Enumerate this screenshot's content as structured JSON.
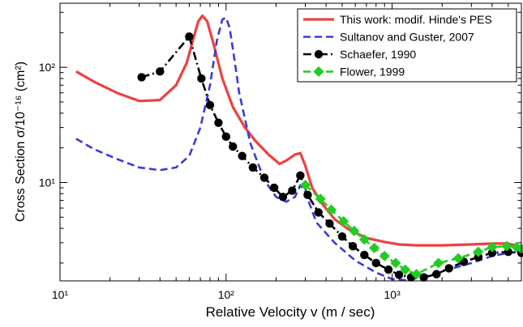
{
  "chart_data": {
    "type": "line",
    "title": "",
    "xlabel": "Relative Velocity  v (m / sec)",
    "ylabel": "Cross Section  σ/10⁻¹⁶ (cm²)",
    "x_scale": "log",
    "y_scale": "log",
    "xlim": [
      10,
      6000
    ],
    "ylim": [
      1.4,
      360
    ],
    "x_ticks": [
      {
        "value": 10,
        "label": "10¹"
      },
      {
        "value": 100,
        "label": "10²"
      },
      {
        "value": 1000,
        "label": "10³"
      }
    ],
    "y_ticks": [
      {
        "value": 10,
        "label": "10¹"
      },
      {
        "value": 100,
        "label": "10²"
      }
    ],
    "grid": false,
    "legend_position": "top-right",
    "series": [
      {
        "name": "This work: modif. Hinde's PES",
        "color": "#f04040",
        "style": "solid",
        "marker": "none",
        "x": [
          12.5,
          16,
          22,
          30,
          40,
          50,
          58,
          63,
          68,
          72,
          77,
          85,
          95,
          110,
          130,
          150,
          180,
          210,
          230,
          260,
          280,
          300,
          330,
          380,
          450,
          550,
          700,
          900,
          1100,
          1400,
          2000,
          3000,
          4000,
          5000,
          5500,
          6000
        ],
        "y": [
          92,
          75,
          60,
          51,
          52,
          70,
          110,
          170,
          250,
          280,
          250,
          150,
          80,
          45,
          30,
          23,
          17.5,
          14.5,
          15.5,
          17.5,
          18,
          14,
          9,
          6.5,
          4.8,
          3.9,
          3.3,
          3.05,
          2.9,
          2.85,
          2.85,
          2.9,
          2.95,
          2.95,
          2.85,
          2.65
        ]
      },
      {
        "name": "Sultanov and Guster, 2007",
        "color": "#3b3bdc",
        "style": "dashed",
        "marker": "none",
        "x": [
          12.5,
          16,
          22,
          30,
          40,
          50,
          60,
          70,
          80,
          88,
          95,
          100,
          105,
          112,
          120,
          140,
          170,
          200,
          230,
          260,
          280,
          300,
          350,
          450,
          600,
          800,
          1000,
          1200,
          1500,
          2000,
          3000,
          4000,
          5000,
          6000
        ],
        "y": [
          24,
          19.5,
          16,
          13.5,
          12.8,
          13.5,
          17,
          30,
          70,
          170,
          260,
          270,
          220,
          120,
          60,
          22,
          10.5,
          7.5,
          6.8,
          7.5,
          9.5,
          8.2,
          4.5,
          3.0,
          2.1,
          1.65,
          1.45,
          1.42,
          1.5,
          1.7,
          2.0,
          2.3,
          2.45,
          2.5
        ]
      },
      {
        "name": "Schaefer, 1990",
        "color": "#000000",
        "style": "dashdot",
        "marker": "circle",
        "x": [
          31,
          40,
          60,
          71,
          80,
          90,
          100,
          110,
          125,
          145,
          170,
          195,
          220,
          250,
          280,
          310,
          360,
          420,
          500,
          580,
          680,
          800,
          950,
          1100,
          1300,
          1550,
          1850,
          2200,
          2700,
          3300,
          4000,
          5000,
          6000
        ],
        "y": [
          82,
          92,
          185,
          80,
          47,
          33,
          25,
          20.5,
          17,
          13.5,
          11,
          9,
          7.5,
          8.5,
          11.5,
          7.8,
          5.5,
          4.4,
          3.4,
          2.8,
          2.35,
          2.0,
          1.75,
          1.58,
          1.5,
          1.5,
          1.6,
          1.8,
          2.05,
          2.25,
          2.45,
          2.5,
          2.45
        ]
      },
      {
        "name": "Flower, 1999",
        "color": "#22cc22",
        "style": "dashed",
        "marker": "diamond",
        "x": [
          300,
          370,
          430,
          510,
          590,
          680,
          780,
          900,
          1050,
          1200,
          1400,
          1900,
          2500,
          3300,
          4000,
          4900,
          5600,
          6000
        ],
        "y": [
          9.5,
          7.2,
          5.8,
          4.6,
          3.8,
          3.2,
          2.7,
          2.3,
          2.0,
          1.75,
          1.6,
          2.0,
          2.2,
          2.5,
          2.75,
          2.8,
          2.75,
          2.65
        ]
      }
    ]
  }
}
